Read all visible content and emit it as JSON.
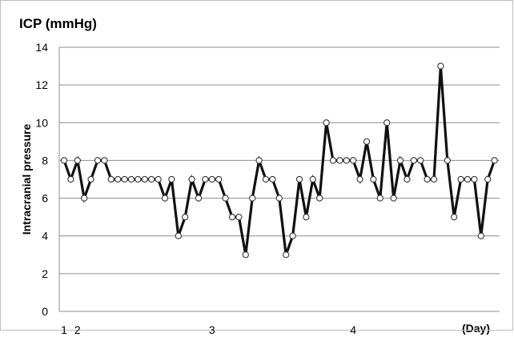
{
  "unit_title": "ICP (mmHg)",
  "chart_data": {
    "type": "line",
    "title": "",
    "ylabel": "Intracranial pressure",
    "x_unit": "(Day)",
    "ylim": [
      0,
      14
    ],
    "y_ticks": [
      0,
      2,
      4,
      6,
      8,
      10,
      12,
      14
    ],
    "x_tick_labels": [
      {
        "label": "1",
        "at_index": 0
      },
      {
        "label": "2",
        "at_index": 2
      },
      {
        "label": "3",
        "at_index": 22
      },
      {
        "label": "4",
        "at_index": 43
      }
    ],
    "grid": "horizontal",
    "legend": "none",
    "marker": "open-circle",
    "line_color": "#111111",
    "grid_color": "#8c8c8c",
    "series": [
      {
        "values": [
          8,
          7,
          8,
          6,
          7,
          8,
          8,
          7,
          7,
          7,
          7,
          7,
          7,
          7,
          7,
          6,
          7,
          4,
          5,
          7,
          6,
          7,
          7,
          7,
          6,
          5,
          5,
          3,
          6,
          8,
          7,
          7,
          6,
          3,
          4,
          7,
          5,
          7,
          6,
          10,
          8,
          8,
          8,
          8,
          7,
          9,
          7,
          6,
          10,
          6,
          8,
          7,
          8,
          8,
          7,
          7,
          13,
          8,
          5,
          7,
          7,
          7,
          4,
          7,
          8
        ]
      }
    ]
  }
}
